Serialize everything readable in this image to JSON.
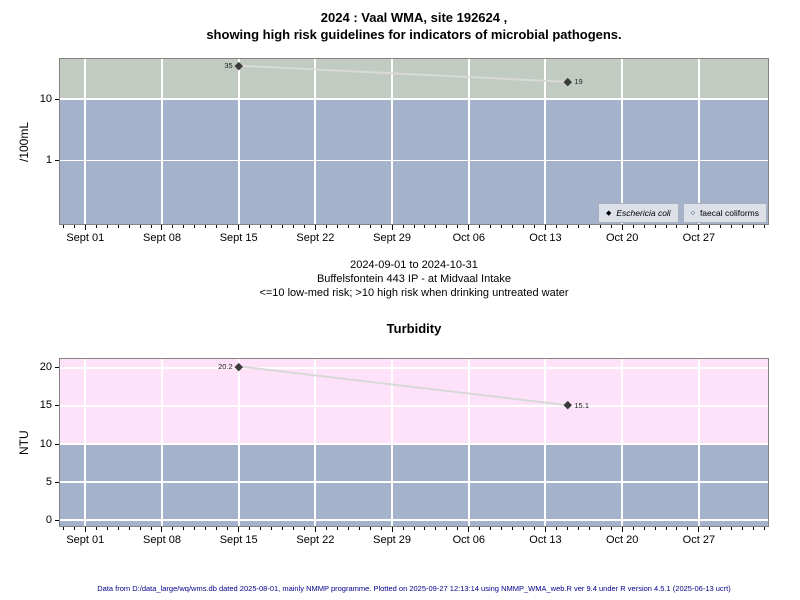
{
  "header": {
    "title_line1": "2024 : Vaal WMA, site 192624 ,",
    "title_line2": "showing high risk guidelines for indicators of microbial pathogens."
  },
  "subtitle": {
    "line1": "2024-09-01 to 2024-10-31",
    "line2": "Buffelsfontein 443 IP - at Midvaal Intake",
    "line3": "<=10 low-med risk; >10 high risk when drinking untreated water"
  },
  "footer": {
    "text": "Data from D:/data_large/wq/wms.db dated 2025-08-01, mainly NMMP programme. Plotted on 2025-09-27 12:13:14 using NMMP_WMA_web.R ver 9.4 under R version 4.5.1 (2025-06-13 ucrt)"
  },
  "chart_data": [
    {
      "type": "line",
      "title": "",
      "ylabel": "/100mL",
      "yscale": "log",
      "ylim": [
        0.088,
        46.7
      ],
      "yticks": [
        1,
        10
      ],
      "threshold": 10,
      "grid": true,
      "colors": {
        "above_band": "#c2cbc1",
        "below_band": "#a4b2cc",
        "line": "#d9d9d9",
        "marker": "#3a3a3a"
      },
      "x_axis": {
        "start_date": "2024-09-01",
        "lim_days": [
          -2.4,
          62.4
        ],
        "major_days": [
          0,
          7,
          14,
          21,
          28,
          35,
          42,
          49,
          56
        ],
        "labels": [
          "Sept 01",
          "Sept 08",
          "Sept 15",
          "Sept 22",
          "Sept 29",
          "Oct 06",
          "Oct 13",
          "Oct 20",
          "Oct 27"
        ]
      },
      "series": [
        {
          "name": "Eschericia coli",
          "marker": "diamond-filled",
          "points": [
            {
              "day": 14,
              "date_label": "Sept 15",
              "value": 35,
              "label": "35",
              "label_side": "left"
            },
            {
              "day": 44,
              "date_label": "Oct 15",
              "value": 19,
              "label": "19",
              "label_side": "right"
            }
          ]
        },
        {
          "name": "faecal coliforms",
          "marker": "circle-open",
          "points": []
        }
      ],
      "legend": {
        "position": "bottom-right",
        "items": [
          {
            "glyph": "◆",
            "label": "Eschericia coli",
            "italic": true
          },
          {
            "glyph": "○",
            "label": "faecal coliforms",
            "italic": false
          }
        ]
      }
    },
    {
      "type": "line",
      "title": "Turbidity",
      "ylabel": "NTU",
      "yscale": "linear",
      "ylim": [
        -0.9,
        21.3
      ],
      "yticks": [
        0,
        5,
        10,
        15,
        20
      ],
      "threshold": 10,
      "grid": true,
      "colors": {
        "above_band": "#fde2fa",
        "below_band": "#a4b2cc",
        "line": "#d9d9d9",
        "marker": "#3a3a3a"
      },
      "x_axis": {
        "start_date": "2024-09-01",
        "lim_days": [
          -2.4,
          62.4
        ],
        "major_days": [
          0,
          7,
          14,
          21,
          28,
          35,
          42,
          49,
          56
        ],
        "labels": [
          "Sept 01",
          "Sept 08",
          "Sept 15",
          "Sept 22",
          "Sept 29",
          "Oct 06",
          "Oct 13",
          "Oct 20",
          "Oct 27"
        ]
      },
      "series": [
        {
          "name": "Turbidity",
          "marker": "diamond-filled",
          "points": [
            {
              "day": 14,
              "date_label": "Sept 15",
              "value": 20.2,
              "label": "20.2",
              "label_side": "left"
            },
            {
              "day": 44,
              "date_label": "Oct 15",
              "value": 15.1,
              "label": "15.1",
              "label_side": "right"
            }
          ]
        }
      ]
    }
  ]
}
